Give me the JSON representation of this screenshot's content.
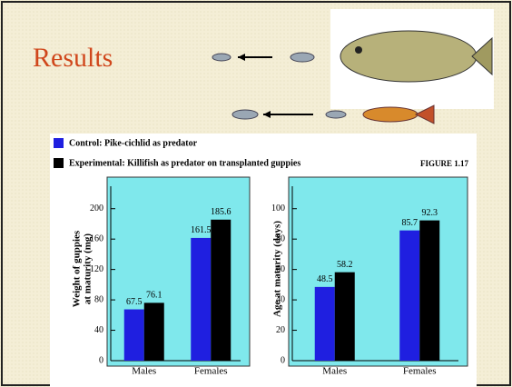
{
  "title": "Results",
  "figure_label": "FIGURE 1.17",
  "chart_data": [
    {
      "type": "bar",
      "categories": [
        "Males",
        "Females"
      ],
      "ylabel": [
        "Weight of guppies",
        "at maturity (mg)"
      ],
      "series": [
        {
          "name": "Control: Pike-cichlid as predator",
          "color": "#1f1fe0",
          "values": [
            67.5,
            161.5
          ]
        },
        {
          "name": "Experimental: Killifish as predator on transplanted guppies",
          "color": "#000000",
          "values": [
            76.1,
            185.6
          ]
        }
      ],
      "ylim": [
        0,
        220
      ],
      "yticks": [
        0,
        40,
        80,
        120,
        160,
        200
      ]
    },
    {
      "type": "bar",
      "categories": [
        "Males",
        "Females"
      ],
      "ylabel": [
        "Age at maturity (days)"
      ],
      "series": [
        {
          "color": "#1f1fe0",
          "values": [
            48.5,
            85.7
          ]
        },
        {
          "color": "#000000",
          "values": [
            58.2,
            92.3
          ]
        }
      ],
      "ylim": [
        0,
        110
      ],
      "yticks": [
        0,
        20,
        40,
        60,
        80,
        100
      ]
    }
  ]
}
